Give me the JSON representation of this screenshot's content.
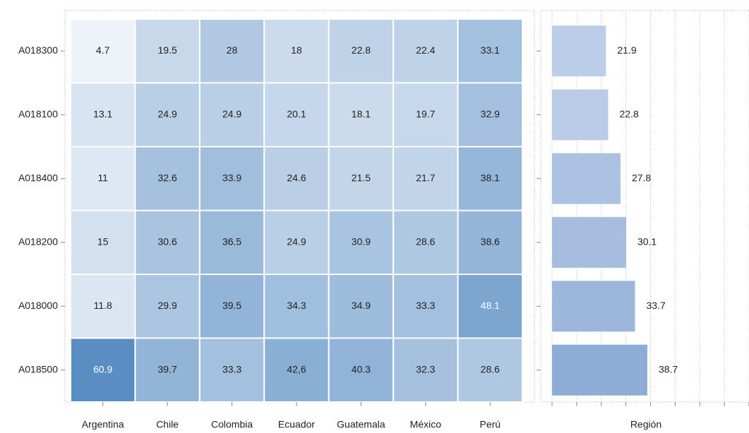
{
  "chart_data": [
    {
      "type": "heatmap",
      "categories": [
        "Argentina",
        "Chile",
        "Colombia",
        "Ecuador",
        "Guatemala",
        "México",
        "Perú"
      ],
      "y_categories": [
        "A018300",
        "A018100",
        "A018400",
        "A018200",
        "A018000",
        "A018500"
      ],
      "values": [
        [
          4.7,
          19.5,
          28,
          18,
          22.8,
          22.4,
          33.1
        ],
        [
          13.1,
          24.9,
          24.9,
          20.1,
          18.1,
          19.7,
          32.9
        ],
        [
          11,
          32.6,
          33.9,
          24.6,
          21.5,
          21.7,
          38.1
        ],
        [
          15,
          30.6,
          36.5,
          24.9,
          30.9,
          28.6,
          38.6
        ],
        [
          11.8,
          29.9,
          39.5,
          34.3,
          34.9,
          33.3,
          48.1
        ],
        [
          60.9,
          39.7,
          33.3,
          42.6,
          40.3,
          32.3,
          28.6
        ]
      ],
      "value_labels": [
        [
          "4.7",
          "19.5",
          "28",
          "18",
          "22.8",
          "22.4",
          "33.1"
        ],
        [
          "13.1",
          "24.9",
          "24.9",
          "20.1",
          "18.1",
          "19.7",
          "32.9"
        ],
        [
          "11",
          "32.6",
          "33.9",
          "24.6",
          "21.5",
          "21.7",
          "38.1"
        ],
        [
          "15",
          "30.6",
          "36.5",
          "24.9",
          "30.9",
          "28.6",
          "38.6"
        ],
        [
          "11.8",
          "29.9",
          "39.5",
          "34.3",
          "34.9",
          "33.3",
          "48.1"
        ],
        [
          "60.9",
          "39.7",
          "33.3",
          "42,6",
          "40.3",
          "32.3",
          "28.6"
        ]
      ],
      "colorscale": [
        "#eef3f9",
        "#5a8ec3"
      ]
    },
    {
      "type": "barh",
      "xlabel": "Región",
      "categories": [
        "A018300",
        "A018100",
        "A018400",
        "A018200",
        "A018000",
        "A018500"
      ],
      "values": [
        21.9,
        22.8,
        27.8,
        30.1,
        33.7,
        38.7
      ],
      "colorscale": [
        "#bccde8",
        "#8eadd6"
      ],
      "xlim": [
        0,
        80
      ],
      "xticks": [
        0,
        10,
        20,
        30,
        40,
        50,
        60,
        70,
        80
      ],
      "grid": true
    }
  ]
}
